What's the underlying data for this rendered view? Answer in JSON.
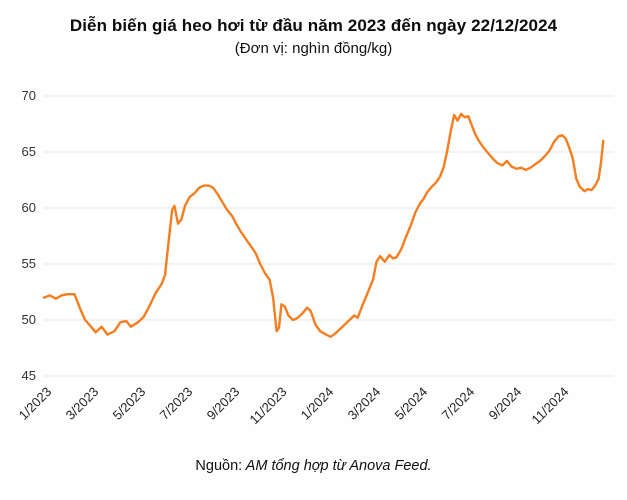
{
  "header": {
    "title": "Diễn biến giá heo hơi từ đầu năm 2023 đến ngày 22/12/2024",
    "subtitle": "(Đơn vị: nghìn đồng/kg)"
  },
  "footer": {
    "source_label": "Nguồn:",
    "source_text": " AM tổng hợp từ Anova Feed."
  },
  "chart_data": {
    "type": "line",
    "title": "Diễn biến giá heo hơi từ đầu năm 2023 đến ngày 22/12/2024",
    "unit": "nghìn đồng/kg",
    "series_name": "Giá heo hơi",
    "line_color": "#f57e20",
    "grid_color": "#e5e5e5",
    "tick_color": "#333333",
    "legend": "none",
    "grid": "horizontal",
    "ylim": [
      45,
      70
    ],
    "yticks": [
      45,
      50,
      55,
      60,
      65,
      70
    ],
    "xlim": [
      0,
      24
    ],
    "xticks": [
      {
        "pos": 0,
        "label": "1/2023"
      },
      {
        "pos": 2,
        "label": "3/2023"
      },
      {
        "pos": 4,
        "label": "5/2023"
      },
      {
        "pos": 6,
        "label": "7/2023"
      },
      {
        "pos": 8,
        "label": "9/2023"
      },
      {
        "pos": 10,
        "label": "11/2023"
      },
      {
        "pos": 12,
        "label": "1/2024"
      },
      {
        "pos": 14,
        "label": "3/2024"
      },
      {
        "pos": 16,
        "label": "5/2024"
      },
      {
        "pos": 18,
        "label": "7/2024"
      },
      {
        "pos": 20,
        "label": "9/2024"
      },
      {
        "pos": 22,
        "label": "11/2024"
      }
    ],
    "points": [
      [
        0,
        52.0
      ],
      [
        0.25,
        52.2
      ],
      [
        0.5,
        51.9
      ],
      [
        0.75,
        52.2
      ],
      [
        1.0,
        52.3
      ],
      [
        1.3,
        52.3
      ],
      [
        1.5,
        51.2
      ],
      [
        1.75,
        50.0
      ],
      [
        2.0,
        49.4
      ],
      [
        2.2,
        48.9
      ],
      [
        2.45,
        49.4
      ],
      [
        2.7,
        48.7
      ],
      [
        3.0,
        49.0
      ],
      [
        3.25,
        49.8
      ],
      [
        3.5,
        49.9
      ],
      [
        3.7,
        49.4
      ],
      [
        4.0,
        49.8
      ],
      [
        4.25,
        50.3
      ],
      [
        4.5,
        51.3
      ],
      [
        4.75,
        52.4
      ],
      [
        5.0,
        53.2
      ],
      [
        5.15,
        54.0
      ],
      [
        5.3,
        57.0
      ],
      [
        5.45,
        59.8
      ],
      [
        5.55,
        60.2
      ],
      [
        5.7,
        58.6
      ],
      [
        5.85,
        59.0
      ],
      [
        6.0,
        60.2
      ],
      [
        6.2,
        61.0
      ],
      [
        6.4,
        61.3
      ],
      [
        6.6,
        61.8
      ],
      [
        6.8,
        62.0
      ],
      [
        7.0,
        62.0
      ],
      [
        7.2,
        61.8
      ],
      [
        7.4,
        61.2
      ],
      [
        7.6,
        60.5
      ],
      [
        7.8,
        59.8
      ],
      [
        8.0,
        59.3
      ],
      [
        8.2,
        58.5
      ],
      [
        8.4,
        57.8
      ],
      [
        8.6,
        57.2
      ],
      [
        8.8,
        56.6
      ],
      [
        9.0,
        56.0
      ],
      [
        9.2,
        55.0
      ],
      [
        9.4,
        54.2
      ],
      [
        9.6,
        53.6
      ],
      [
        9.75,
        52.0
      ],
      [
        9.9,
        49.0
      ],
      [
        10.0,
        49.3
      ],
      [
        10.1,
        51.4
      ],
      [
        10.25,
        51.2
      ],
      [
        10.4,
        50.4
      ],
      [
        10.6,
        50.0
      ],
      [
        10.8,
        50.2
      ],
      [
        11.0,
        50.6
      ],
      [
        11.2,
        51.1
      ],
      [
        11.35,
        50.8
      ],
      [
        11.55,
        49.6
      ],
      [
        11.75,
        49.0
      ],
      [
        12.0,
        48.7
      ],
      [
        12.2,
        48.5
      ],
      [
        12.4,
        48.8
      ],
      [
        12.6,
        49.2
      ],
      [
        12.8,
        49.6
      ],
      [
        13.0,
        50.0
      ],
      [
        13.2,
        50.4
      ],
      [
        13.35,
        50.2
      ],
      [
        13.55,
        51.3
      ],
      [
        13.75,
        52.3
      ],
      [
        14.0,
        53.6
      ],
      [
        14.15,
        55.2
      ],
      [
        14.3,
        55.7
      ],
      [
        14.5,
        55.2
      ],
      [
        14.7,
        55.8
      ],
      [
        14.85,
        55.5
      ],
      [
        15.0,
        55.6
      ],
      [
        15.2,
        56.3
      ],
      [
        15.4,
        57.4
      ],
      [
        15.6,
        58.4
      ],
      [
        15.8,
        59.6
      ],
      [
        16.0,
        60.4
      ],
      [
        16.15,
        60.8
      ],
      [
        16.3,
        61.4
      ],
      [
        16.5,
        61.9
      ],
      [
        16.7,
        62.3
      ],
      [
        16.85,
        62.8
      ],
      [
        17.0,
        63.6
      ],
      [
        17.15,
        65.0
      ],
      [
        17.3,
        66.8
      ],
      [
        17.45,
        68.3
      ],
      [
        17.6,
        67.8
      ],
      [
        17.75,
        68.4
      ],
      [
        17.9,
        68.1
      ],
      [
        18.05,
        68.2
      ],
      [
        18.2,
        67.4
      ],
      [
        18.35,
        66.6
      ],
      [
        18.5,
        66.0
      ],
      [
        18.7,
        65.4
      ],
      [
        18.9,
        64.9
      ],
      [
        19.1,
        64.4
      ],
      [
        19.3,
        64.0
      ],
      [
        19.5,
        63.8
      ],
      [
        19.7,
        64.2
      ],
      [
        19.9,
        63.7
      ],
      [
        20.1,
        63.5
      ],
      [
        20.3,
        63.6
      ],
      [
        20.5,
        63.4
      ],
      [
        20.7,
        63.6
      ],
      [
        20.9,
        63.9
      ],
      [
        21.1,
        64.2
      ],
      [
        21.3,
        64.6
      ],
      [
        21.5,
        65.1
      ],
      [
        21.7,
        65.9
      ],
      [
        21.9,
        66.4
      ],
      [
        22.05,
        66.5
      ],
      [
        22.2,
        66.2
      ],
      [
        22.35,
        65.4
      ],
      [
        22.5,
        64.4
      ],
      [
        22.65,
        62.6
      ],
      [
        22.8,
        61.9
      ],
      [
        23.0,
        61.5
      ],
      [
        23.15,
        61.7
      ],
      [
        23.3,
        61.6
      ],
      [
        23.45,
        62.0
      ],
      [
        23.6,
        62.6
      ],
      [
        23.7,
        64.0
      ],
      [
        23.8,
        66.0
      ]
    ]
  }
}
